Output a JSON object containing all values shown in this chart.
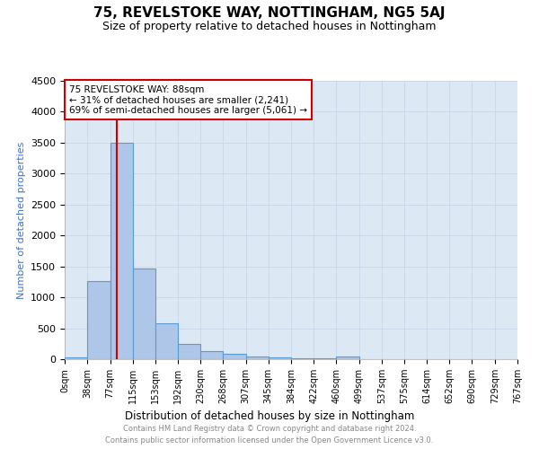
{
  "title": "75, REVELSTOKE WAY, NOTTINGHAM, NG5 5AJ",
  "subtitle": "Size of property relative to detached houses in Nottingham",
  "xlabel": "Distribution of detached houses by size in Nottingham",
  "ylabel": "Number of detached properties",
  "footer_line1": "Contains HM Land Registry data © Crown copyright and database right 2024.",
  "footer_line2": "Contains public sector information licensed under the Open Government Licence v3.0.",
  "bar_edges": [
    0,
    38,
    77,
    115,
    153,
    192,
    230,
    268,
    307,
    345,
    384,
    422,
    460,
    499,
    537,
    575,
    614,
    652,
    690,
    729,
    767
  ],
  "bar_heights": [
    30,
    1270,
    3500,
    1470,
    580,
    245,
    130,
    80,
    45,
    25,
    15,
    10,
    50,
    5,
    0,
    0,
    0,
    0,
    0,
    0
  ],
  "bar_color": "#aec6e8",
  "bar_edgecolor": "#5b9bd5",
  "property_line_x": 88,
  "property_line_color": "#cc0000",
  "annotation_line1": "75 REVELSTOKE WAY: 88sqm",
  "annotation_line2": "← 31% of detached houses are smaller (2,241)",
  "annotation_line3": "69% of semi-detached houses are larger (5,061) →",
  "annotation_box_color": "#ffffff",
  "annotation_box_edgecolor": "#cc0000",
  "ylim": [
    0,
    4500
  ],
  "xlim": [
    0,
    767
  ],
  "xtick_labels": [
    "0sqm",
    "38sqm",
    "77sqm",
    "115sqm",
    "153sqm",
    "192sqm",
    "230sqm",
    "268sqm",
    "307sqm",
    "345sqm",
    "384sqm",
    "422sqm",
    "460sqm",
    "499sqm",
    "537sqm",
    "575sqm",
    "614sqm",
    "652sqm",
    "690sqm",
    "729sqm",
    "767sqm"
  ],
  "xtick_positions": [
    0,
    38,
    77,
    115,
    153,
    192,
    230,
    268,
    307,
    345,
    384,
    422,
    460,
    499,
    537,
    575,
    614,
    652,
    690,
    729,
    767
  ],
  "grid_color": "#c8d8ea",
  "background_color": "#dce8f4",
  "title_fontsize": 11,
  "subtitle_fontsize": 9,
  "ylabel_color": "#4472c4"
}
